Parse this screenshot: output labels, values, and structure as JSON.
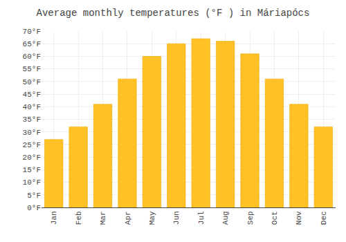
{
  "chart_data": {
    "type": "bar",
    "title": "Average monthly temperatures (°F ) in Máriapócs",
    "categories": [
      "Jan",
      "Feb",
      "Mar",
      "Apr",
      "May",
      "Jun",
      "Jul",
      "Aug",
      "Sep",
      "Oct",
      "Nov",
      "Dec"
    ],
    "values": [
      27,
      32,
      41,
      51,
      60,
      65,
      67,
      66,
      61,
      51,
      41,
      32
    ],
    "color": "#FFC125",
    "ylim": [
      0,
      70
    ],
    "yticks": [
      {
        "value": 0,
        "label": "0°F"
      },
      {
        "value": 5,
        "label": "5°F"
      },
      {
        "value": 10,
        "label": "10°F"
      },
      {
        "value": 15,
        "label": "15°F"
      },
      {
        "value": 20,
        "label": "20°F"
      },
      {
        "value": 25,
        "label": "25°F"
      },
      {
        "value": 30,
        "label": "30°F"
      },
      {
        "value": 35,
        "label": "35°F"
      },
      {
        "value": 40,
        "label": "40°F"
      },
      {
        "value": 45,
        "label": "45°F"
      },
      {
        "value": 50,
        "label": "50°F"
      },
      {
        "value": 55,
        "label": "55°F"
      },
      {
        "value": 60,
        "label": "60°F"
      },
      {
        "value": 65,
        "label": "65°F"
      },
      {
        "value": 70,
        "label": "70°F"
      }
    ],
    "grid": true
  }
}
